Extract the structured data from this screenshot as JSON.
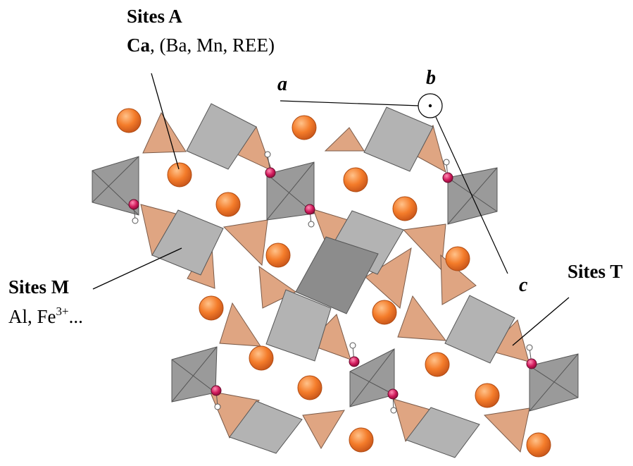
{
  "labels": {
    "sites_a_title": "Sites A",
    "sites_a_main": "Ca",
    "sites_a_rest": ", (Ba, Mn, REE)",
    "sites_m_title": "Sites M",
    "sites_m_base": "Al, Fe",
    "sites_m_sup": "3+",
    "sites_m_tail": "...",
    "sites_t_title": "Sites T"
  },
  "axes": {
    "a": "a",
    "b": "b",
    "c": "c"
  },
  "colors": {
    "octahedron_light": "#b3b3b3",
    "octahedron_dark": "#8c8c8c",
    "tetrahedron": "#dfa582",
    "cation_sphere": "#f47c2a",
    "hydroxyl_oxygen": "#d11a5c",
    "hydrogen": "#ffffff"
  }
}
